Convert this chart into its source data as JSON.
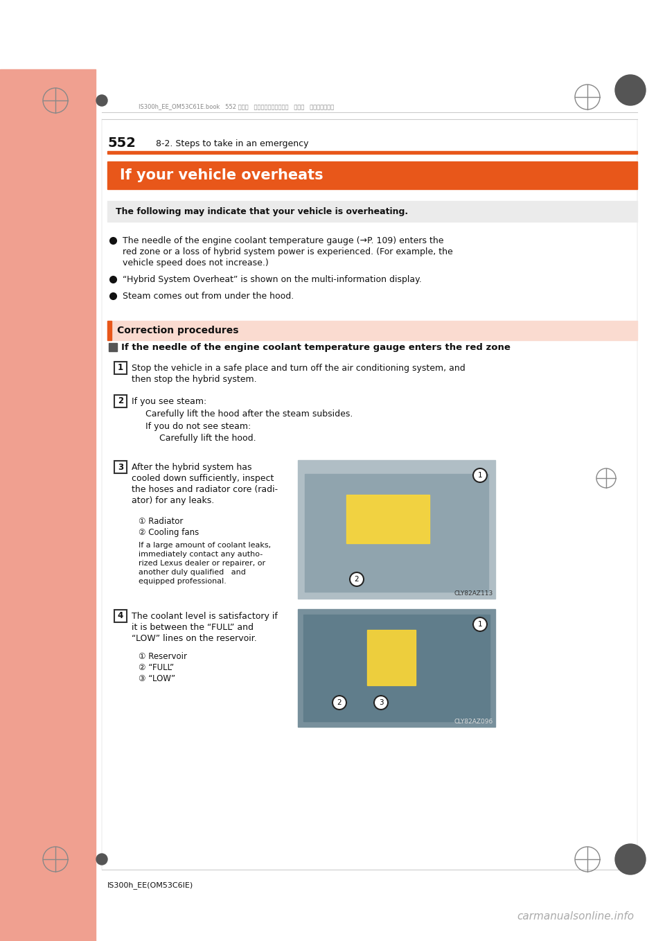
{
  "bg_color": "#ffffff",
  "salmon_color": "#f0a090",
  "orange_color": "#e8571a",
  "gray_bar_color": "#ebebeb",
  "correction_bar_color": "#fadbd0",
  "header_jp": "IS300h_EE_OM53C61E.book   552 ページ   ２０１４年５月２０日   火曜日   午後５時４０分",
  "page_number": "552",
  "section_title": "8-2. Steps to take in an emergency",
  "main_title": "If your vehicle overheats",
  "gray_header": "The following may indicate that your vehicle is overheating.",
  "bullets": [
    "The needle of the engine coolant temperature gauge (→P. 109) enters the\nred zone or a loss of hybrid system power is experienced. (For example, the\nvehicle speed does not increase.)",
    "“Hybrid System Overheat” is shown on the multi-information display.",
    "Steam comes out from under the hood."
  ],
  "correction_title": "Correction procedures",
  "subsection": "If the needle of the engine coolant temperature gauge enters the red zone",
  "step1": "Stop the vehicle in a safe place and turn off the air conditioning system, and\nthen stop the hybrid system.",
  "step2a": "If you see steam:",
  "step2b": "Carefully lift the hood after the steam subsides.",
  "step2c": "If you do not see steam:",
  "step2d": "Carefully lift the hood.",
  "step3": "After the hybrid system has\ncooled down sufficiently, inspect\nthe hoses and radiator core (radi-\nator) for any leaks.",
  "step3_sub1": "① Radiator",
  "step3_sub2": "② Cooling fans",
  "step3_note": "If a large amount of coolant leaks,\nimmediately contact any autho-\nrized Lexus dealer or repairer, or\nanother duly qualified   and\nequipped professional.",
  "step4": "The coolant level is satisfactory if\nit is between the “FULL” and\n“LOW” lines on the reservoir.",
  "step4_sub1": "① Reservoir",
  "step4_sub2": "② “FULL”",
  "step4_sub3": "③ “LOW”",
  "img1_code": "CLY82AZ113",
  "img2_code": "CLY82AZ096",
  "footer": "IS300h_EE(OM53C6IE)",
  "watermark": "carmanualsonline.info"
}
